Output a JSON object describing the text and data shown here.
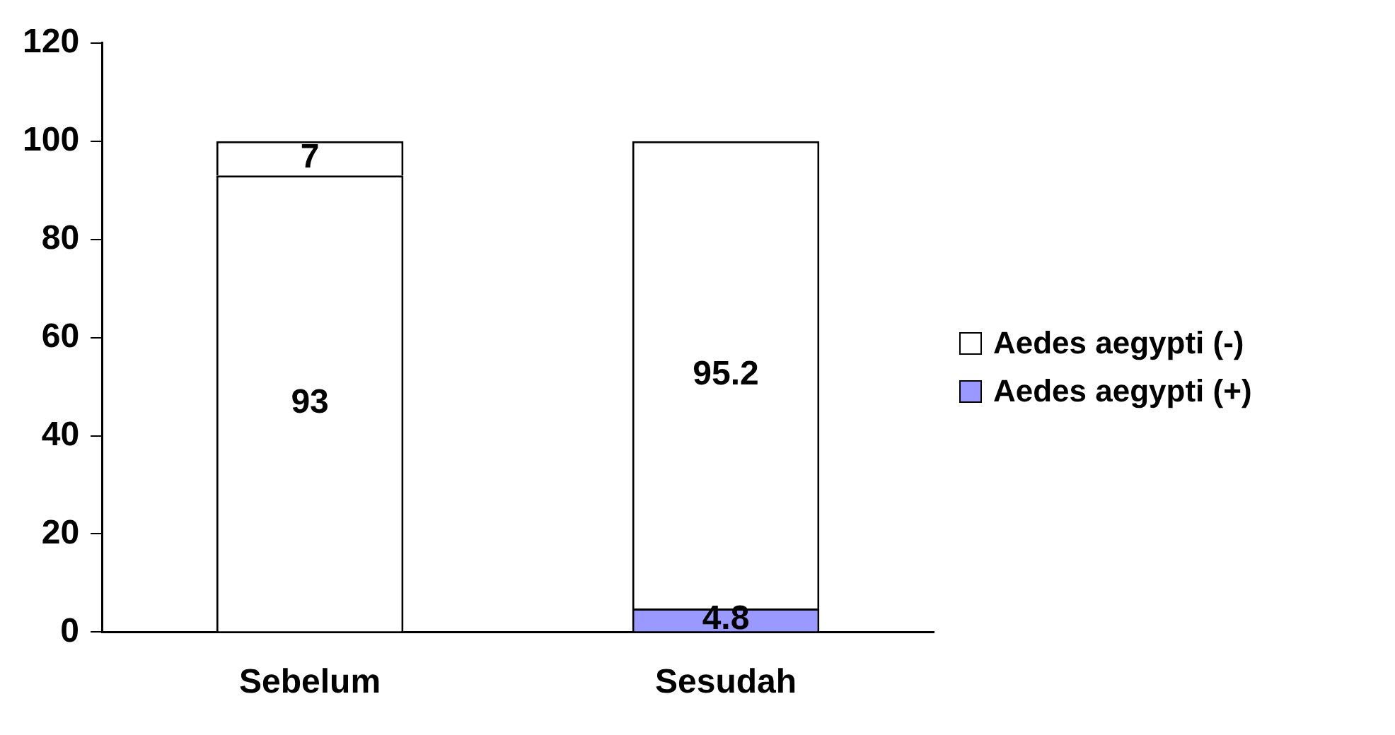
{
  "chart_data": {
    "type": "bar",
    "stacked": true,
    "categories": [
      "Sebelum",
      "Sesudah"
    ],
    "series": [
      {
        "name": "Aedes aegypti (+)",
        "color": "#9999ff",
        "colors": [
          "#9999ff",
          "#9999ff"
        ],
        "values": [
          null,
          4.8
        ]
      },
      {
        "name": "Aedes aegypti (-)",
        "color": "#ffffff",
        "colors": [
          "#ffffff",
          "#ffffff"
        ],
        "values": [
          93,
          95.2
        ]
      },
      {
        "color": "#ffffff",
        "colors": [
          "#ffffff",
          "#ffffff"
        ],
        "values": [
          7,
          null
        ]
      }
    ],
    "ylim": [
      0,
      120
    ],
    "yticks": [
      0,
      20,
      40,
      60,
      80,
      100,
      120
    ],
    "grid": false,
    "legend": "right",
    "data_labels": true
  }
}
